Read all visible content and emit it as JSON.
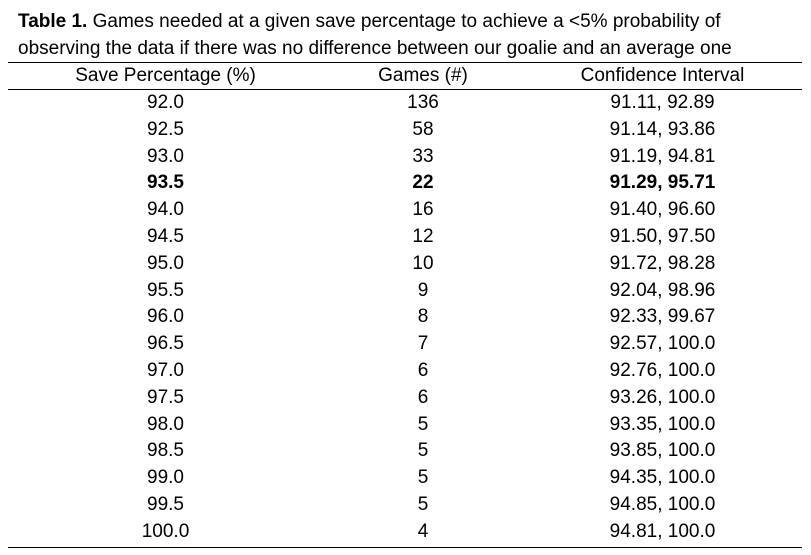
{
  "caption": {
    "label": "Table 1.",
    "line1": " Games needed at a given save percentage to achieve a <5% probability of",
    "line2": "observing the data if there was no difference between our goalie and an average one"
  },
  "table": {
    "headers": [
      "Save Percentage (%)",
      "Games (#)",
      "Confidence Interval"
    ],
    "rows": [
      {
        "save": "92.0",
        "games": "136",
        "ci": "91.11, 92.89",
        "bold": false
      },
      {
        "save": "92.5",
        "games": "58",
        "ci": "91.14, 93.86",
        "bold": false
      },
      {
        "save": "93.0",
        "games": "33",
        "ci": "91.19, 94.81",
        "bold": false
      },
      {
        "save": "93.5",
        "games": "22",
        "ci": "91.29, 95.71",
        "bold": true
      },
      {
        "save": "94.0",
        "games": "16",
        "ci": "91.40, 96.60",
        "bold": false
      },
      {
        "save": "94.5",
        "games": "12",
        "ci": "91.50, 97.50",
        "bold": false
      },
      {
        "save": "95.0",
        "games": "10",
        "ci": "91.72, 98.28",
        "bold": false
      },
      {
        "save": "95.5",
        "games": "9",
        "ci": "92.04, 98.96",
        "bold": false
      },
      {
        "save": "96.0",
        "games": "8",
        "ci": "92.33, 99.67",
        "bold": false
      },
      {
        "save": "96.5",
        "games": "7",
        "ci": "92.57, 100.0",
        "bold": false
      },
      {
        "save": "97.0",
        "games": "6",
        "ci": "92.76, 100.0",
        "bold": false
      },
      {
        "save": "97.5",
        "games": "6",
        "ci": "93.26, 100.0",
        "bold": false
      },
      {
        "save": "98.0",
        "games": "5",
        "ci": "93.35, 100.0",
        "bold": false
      },
      {
        "save": "98.5",
        "games": "5",
        "ci": "93.85, 100.0",
        "bold": false
      },
      {
        "save": "99.0",
        "games": "5",
        "ci": "94.35, 100.0",
        "bold": false
      },
      {
        "save": "99.5",
        "games": "5",
        "ci": "94.85, 100.0",
        "bold": false
      },
      {
        "save": "100.0",
        "games": "4",
        "ci": "94.81, 100.0",
        "bold": false
      }
    ]
  }
}
